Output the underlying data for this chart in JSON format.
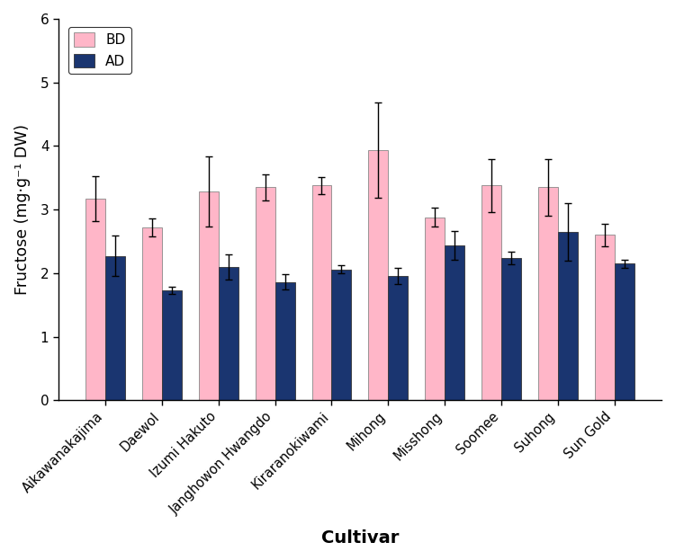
{
  "cultivars": [
    "Aikawanakajima",
    "Daewol",
    "Izumi Hakuto",
    "Janghowon Hwangdo",
    "Kiraranokiwami",
    "Mihong",
    "Misshong",
    "Soomee",
    "Suhong",
    "Sun Gold"
  ],
  "BD_values": [
    3.17,
    2.72,
    3.28,
    3.35,
    3.38,
    3.93,
    2.88,
    3.38,
    3.35,
    2.6
  ],
  "AD_values": [
    2.27,
    1.73,
    2.1,
    1.86,
    2.06,
    1.96,
    2.44,
    2.24,
    2.65,
    2.15
  ],
  "BD_errors": [
    0.35,
    0.14,
    0.55,
    0.2,
    0.13,
    0.75,
    0.15,
    0.42,
    0.45,
    0.18
  ],
  "AD_errors": [
    0.32,
    0.06,
    0.2,
    0.12,
    0.06,
    0.13,
    0.23,
    0.1,
    0.45,
    0.06
  ],
  "BD_color": "#ffb6c8",
  "AD_color": "#1a3570",
  "bar_width": 0.35,
  "ylim": [
    0,
    6
  ],
  "yticks": [
    0,
    1,
    2,
    3,
    4,
    5,
    6
  ],
  "ylabel": "Fructose (mg·g⁻¹ DW)",
  "xlabel": "Cultivar",
  "legend_labels": [
    "BD",
    "AD"
  ],
  "title": "",
  "figsize": [
    7.5,
    6.23
  ],
  "dpi": 100
}
